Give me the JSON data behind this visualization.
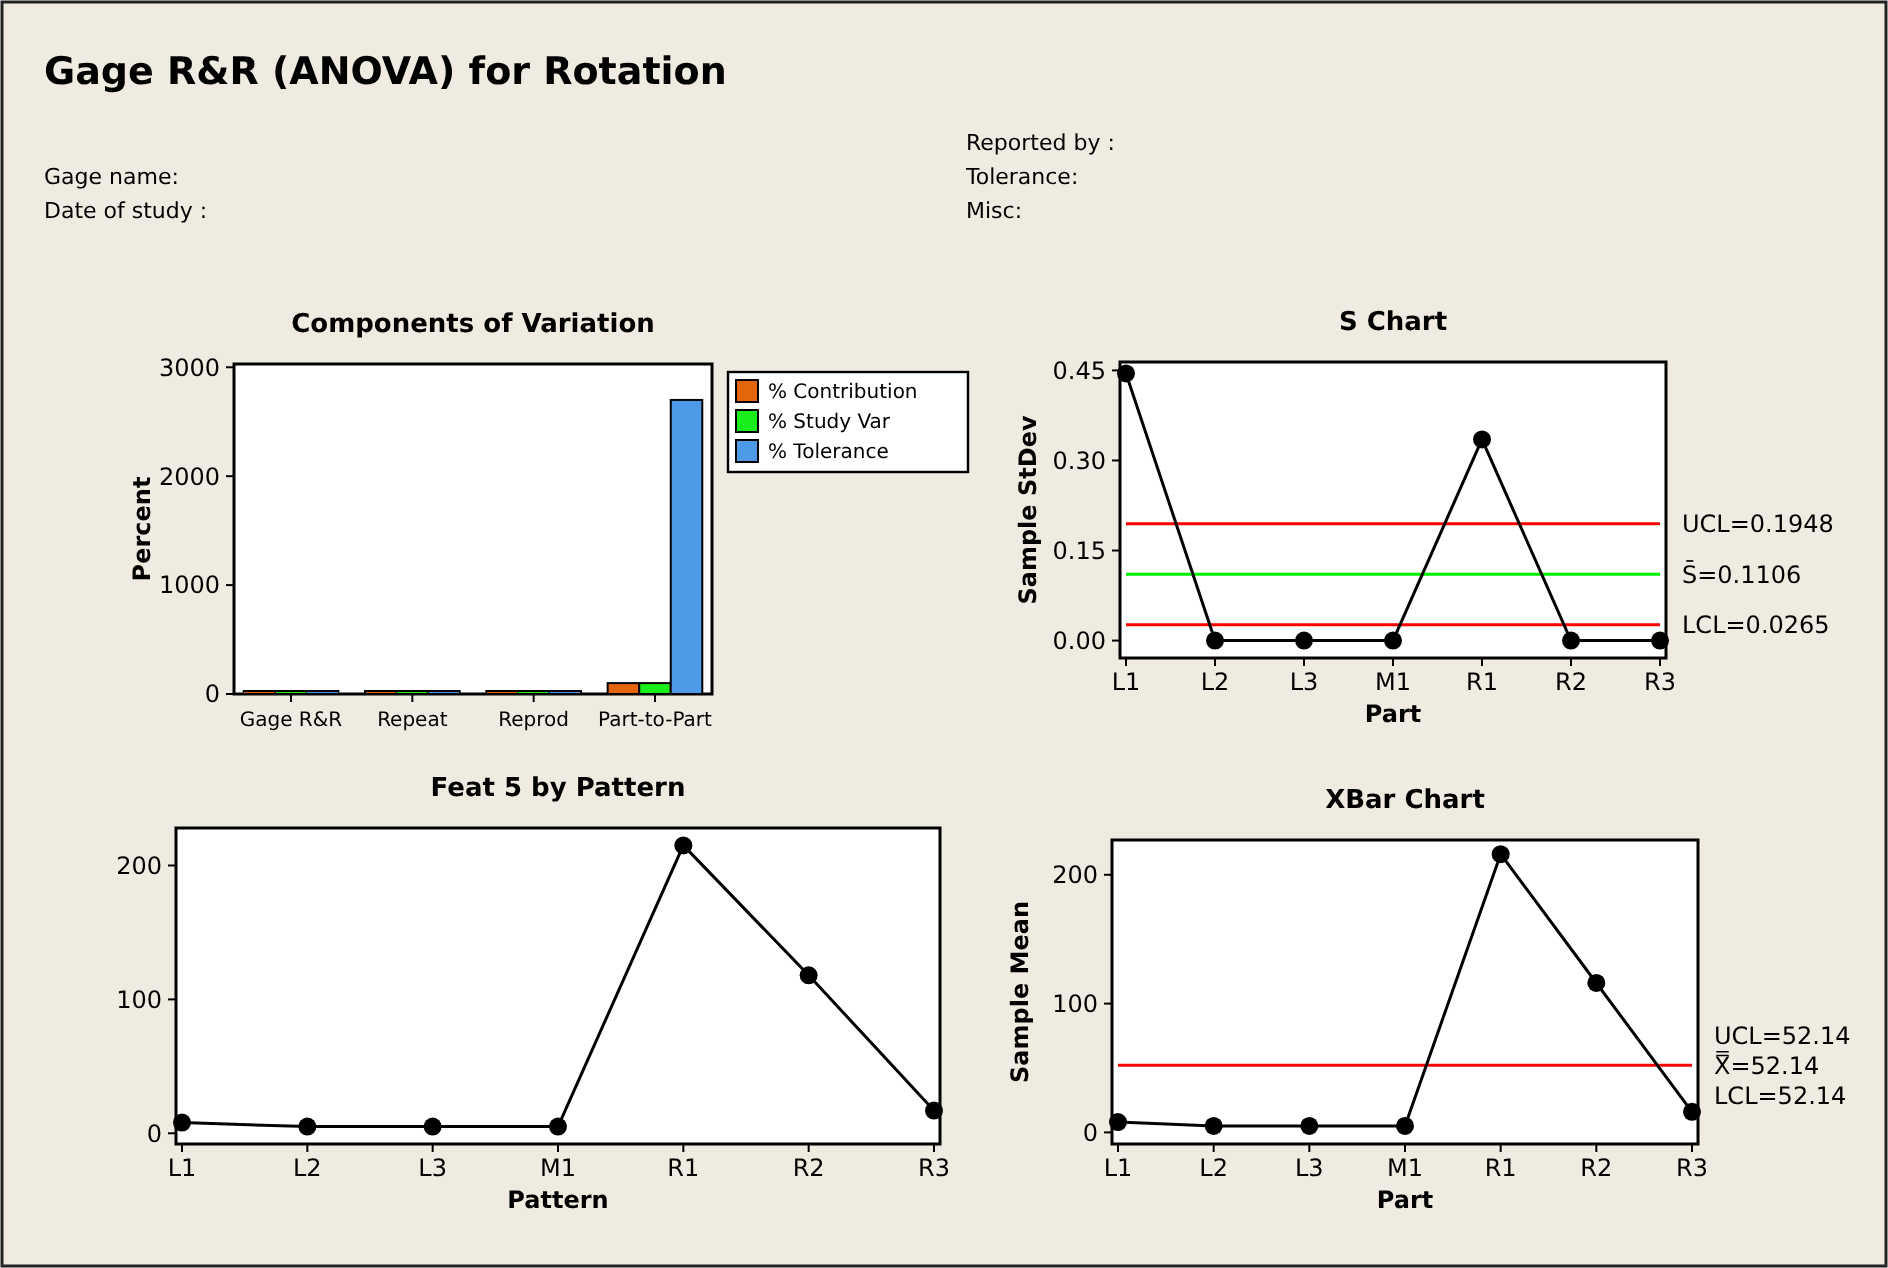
{
  "chart_data": [
    {
      "type": "other",
      "title": "Gage R&R (ANOVA) for Rotation",
      "annotations": [
        "Gage name:",
        "Date of study :",
        "Reported by :",
        "Tolerance:",
        "Misc:"
      ]
    },
    {
      "type": "bar",
      "title": "Components of Variation",
      "ylabel": "Percent",
      "categories": [
        "Gage R&R",
        "Repeat",
        "Reprod",
        "Part-to-Part"
      ],
      "ylim": [
        0,
        3030
      ],
      "yticks": [
        0,
        1000,
        2000,
        3000
      ],
      "legend": "top right",
      "series": [
        {
          "name": "% Contribution",
          "color": "#e3660a",
          "values": [
            0,
            0,
            0,
            100
          ]
        },
        {
          "name": "% Study Var",
          "color": "#1aee1a",
          "values": [
            0,
            0,
            0,
            100
          ]
        },
        {
          "name": "% Tolerance",
          "color": "#4d9ae8",
          "values": [
            0,
            0,
            0,
            2700
          ]
        }
      ]
    },
    {
      "type": "line",
      "title": "S Chart",
      "xlabel": "Part",
      "ylabel": "Sample StDev",
      "categories": [
        "L1",
        "L2",
        "L3",
        "M1",
        "R1",
        "R2",
        "R3"
      ],
      "values": [
        0.445,
        0,
        0,
        0,
        0.335,
        0,
        0
      ],
      "color": "#000000",
      "marker": "circle",
      "ylim": [
        -0.029,
        0.464
      ],
      "yticks": [
        {
          "value": 0,
          "label": "0.00"
        },
        {
          "value": 0.15,
          "label": "0.15"
        },
        {
          "value": 0.3,
          "label": "0.30"
        },
        {
          "value": 0.45,
          "label": "0.45"
        }
      ],
      "ref_lines": [
        {
          "axis": "y",
          "value": 0.1948,
          "label": "UCL=0.1948",
          "color": "#ff0000"
        },
        {
          "axis": "y",
          "value": 0.1106,
          "label": "S̄=0.1106",
          "color": "#00ee00"
        },
        {
          "axis": "y",
          "value": 0.0265,
          "label": "LCL=0.0265",
          "color": "#ff0000"
        }
      ]
    },
    {
      "type": "line",
      "title": "Feat 5 by Pattern",
      "xlabel": "Pattern",
      "categories": [
        "L1",
        "L2",
        "L3",
        "M1",
        "R1",
        "R2",
        "R3"
      ],
      "values": [
        8,
        5,
        5,
        5,
        215,
        118,
        17
      ],
      "color": "#000000",
      "marker": "circle",
      "ylim": [
        -8,
        228
      ],
      "yticks": [
        0,
        100,
        200
      ]
    },
    {
      "type": "line",
      "title": "XBar Chart",
      "xlabel": "Part",
      "ylabel": "Sample Mean",
      "categories": [
        "L1",
        "L2",
        "L3",
        "M1",
        "R1",
        "R2",
        "R3"
      ],
      "values": [
        8,
        5,
        5,
        5,
        216,
        116,
        16
      ],
      "color": "#000000",
      "marker": "circle",
      "ylim": [
        -9,
        227
      ],
      "yticks": [
        0,
        100,
        200
      ],
      "ref_lines": [
        {
          "axis": "y",
          "value": 52.14,
          "label": "X̿=52.14",
          "color": "#ff0000"
        }
      ],
      "annotations": [
        "UCL=52.14",
        "LCL=52.14"
      ]
    }
  ]
}
